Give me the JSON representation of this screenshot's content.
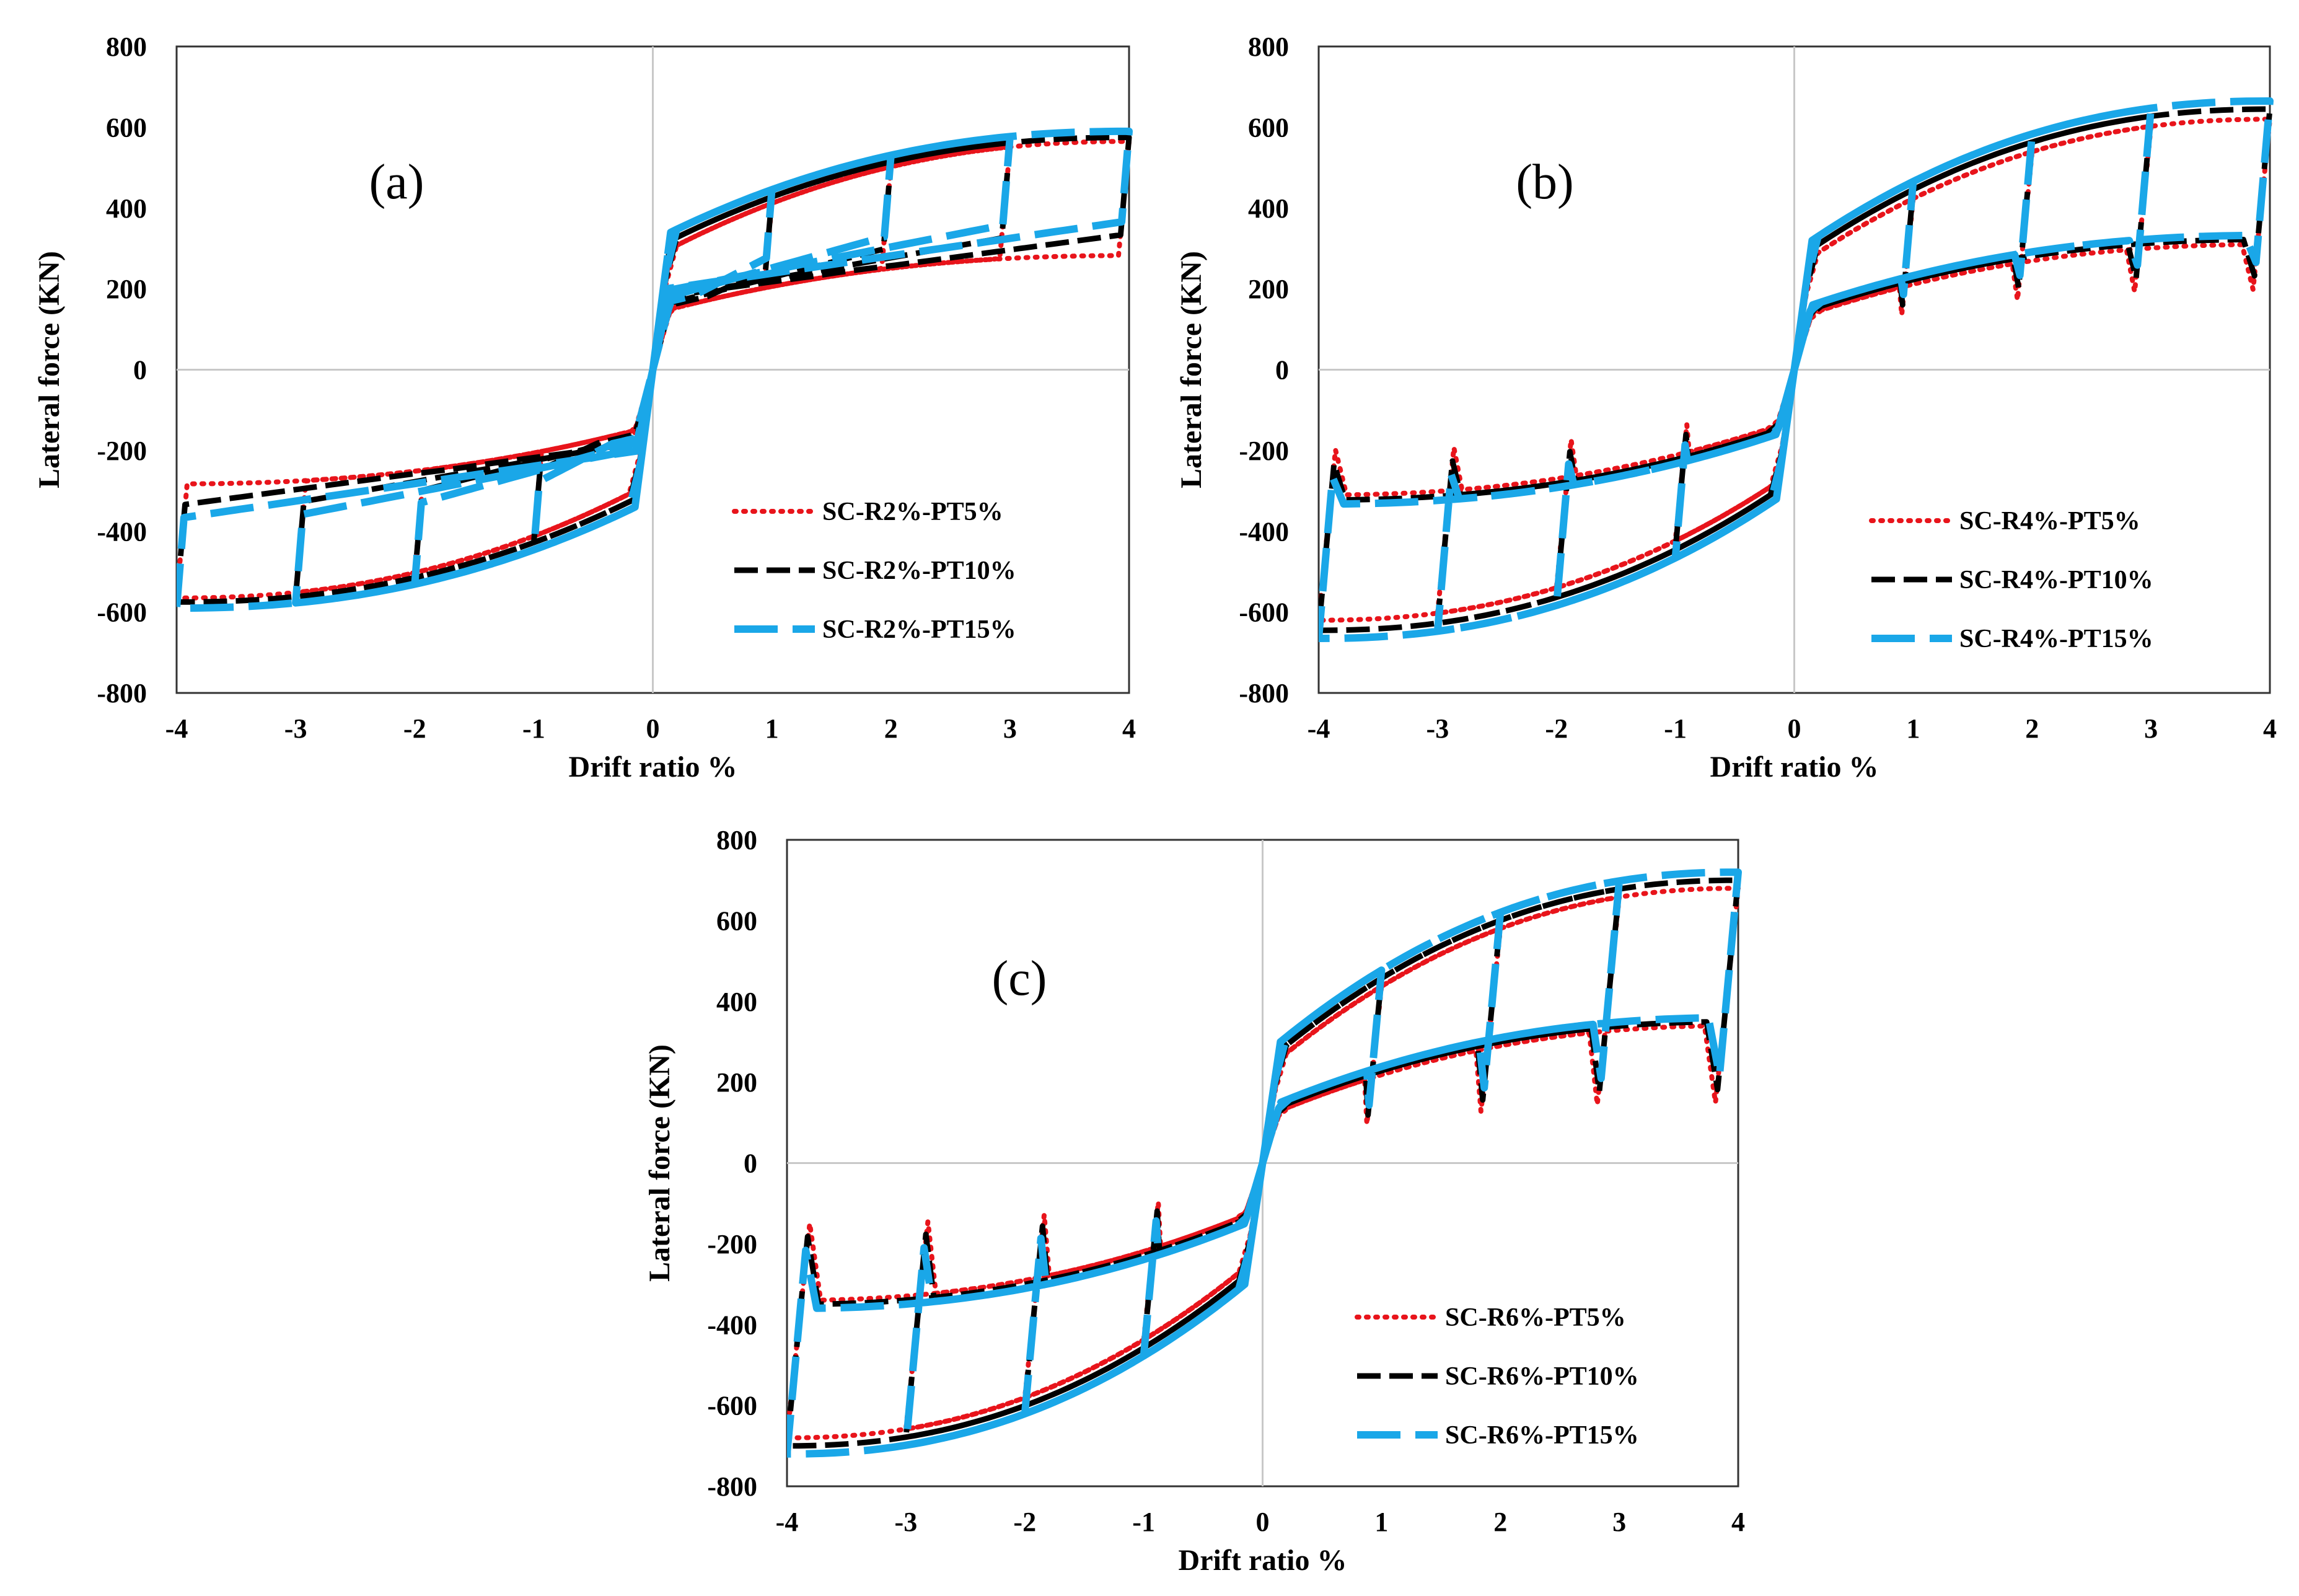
{
  "chart_data": [
    {
      "type": "line",
      "panel_label": "(a)",
      "xlabel": "Drift ratio %",
      "ylabel": "Lateral force (KN)",
      "xlim": [
        -4,
        4
      ],
      "ylim": [
        -800,
        800
      ],
      "x_ticks": [
        "-4",
        "-3",
        "-2",
        "-1",
        "0",
        "1",
        "2",
        "3",
        "4"
      ],
      "y_ticks": [
        "800",
        "600",
        "400",
        "200",
        "0",
        "-200",
        "-400",
        "-600",
        "-800"
      ],
      "amplitudes": [
        1.0,
        2.0,
        3.0,
        4.0
      ],
      "series": [
        {
          "name": "SC-R2%-PT5%",
          "style": "dotted",
          "color": "#e8141b",
          "peak_force": 565,
          "elastic_drift": 0.15,
          "elastic_force": 300,
          "unload_force_ratio": 0.5
        },
        {
          "name": "SC-R2%-PT10%",
          "style": "dashed",
          "color": "#000000",
          "peak_force": 575,
          "elastic_drift": 0.15,
          "elastic_force": 320,
          "unload_force_ratio": 0.58
        },
        {
          "name": "SC-R2%-PT15%",
          "style": "longdash",
          "color": "#1aa7e8",
          "peak_force": 590,
          "elastic_drift": 0.15,
          "elastic_force": 340,
          "unload_force_ratio": 0.62
        }
      ]
    },
    {
      "type": "line",
      "panel_label": "(b)",
      "xlabel": "Drift ratio %",
      "ylabel": "Lateral force (KN)",
      "xlim": [
        -4,
        4
      ],
      "ylim": [
        -800,
        800
      ],
      "x_ticks": [
        "-4",
        "-3",
        "-2",
        "-1",
        "0",
        "1",
        "2",
        "3",
        "4"
      ],
      "y_ticks": [
        "800",
        "600",
        "400",
        "200",
        "0",
        "-200",
        "-400",
        "-600",
        "-800"
      ],
      "amplitudes": [
        1.0,
        2.0,
        3.0,
        4.0
      ],
      "series": [
        {
          "name": "SC-R4%-PT5%",
          "style": "dotted",
          "color": "#e8141b",
          "peak_force": 620,
          "elastic_drift": 0.15,
          "elastic_force": 280,
          "unload_force_ratio": 0.32
        },
        {
          "name": "SC-R4%-PT10%",
          "style": "dashed",
          "color": "#000000",
          "peak_force": 645,
          "elastic_drift": 0.15,
          "elastic_force": 300,
          "unload_force_ratio": 0.36
        },
        {
          "name": "SC-R4%-PT15%",
          "style": "longdash",
          "color": "#1aa7e8",
          "peak_force": 665,
          "elastic_drift": 0.15,
          "elastic_force": 320,
          "unload_force_ratio": 0.4
        }
      ]
    },
    {
      "type": "line",
      "panel_label": "(c)",
      "xlabel": "Drift ratio %",
      "ylabel": "Lateral force (KN)",
      "xlim": [
        -4,
        4
      ],
      "ylim": [
        -800,
        800
      ],
      "x_ticks": [
        "-4",
        "-3",
        "-2",
        "-1",
        "0",
        "1",
        "2",
        "3",
        "4"
      ],
      "y_ticks": [
        "800",
        "600",
        "400",
        "200",
        "0",
        "-200",
        "-400",
        "-600",
        "-800"
      ],
      "amplitudes": [
        1.0,
        2.0,
        3.0,
        4.0
      ],
      "series": [
        {
          "name": "SC-R6%-PT5%",
          "style": "dotted",
          "color": "#e8141b",
          "peak_force": 680,
          "elastic_drift": 0.15,
          "elastic_force": 260,
          "unload_force_ratio": 0.22
        },
        {
          "name": "SC-R6%-PT10%",
          "style": "dashed",
          "color": "#000000",
          "peak_force": 700,
          "elastic_drift": 0.15,
          "elastic_force": 280,
          "unload_force_ratio": 0.26
        },
        {
          "name": "SC-R6%-PT15%",
          "style": "longdash",
          "color": "#1aa7e8",
          "peak_force": 720,
          "elastic_drift": 0.15,
          "elastic_force": 300,
          "unload_force_ratio": 0.3
        }
      ]
    }
  ]
}
